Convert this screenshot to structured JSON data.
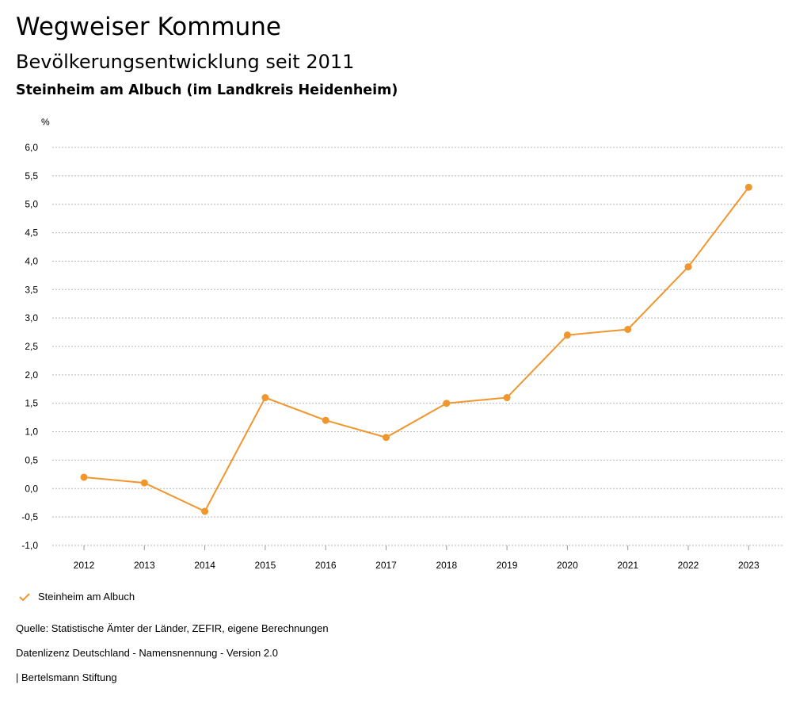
{
  "header": {
    "title": "Wegweiser Kommune",
    "subtitle": "Bevölkerungsentwicklung seit 2011",
    "region": "Steinheim am Albuch (im Landkreis Heidenheim)"
  },
  "chart_data": {
    "type": "line",
    "ylabel": "%",
    "ylim": [
      -1.0,
      6.0
    ],
    "yticks": [
      "6,0",
      "5,5",
      "5,0",
      "4,5",
      "4,0",
      "3,5",
      "3,0",
      "2,5",
      "2,0",
      "1,5",
      "1,0",
      "0,5",
      "0,0",
      "-0,5",
      "-1,0"
    ],
    "ytick_values": [
      6.0,
      5.5,
      5.0,
      4.5,
      4.0,
      3.5,
      3.0,
      2.5,
      2.0,
      1.5,
      1.0,
      0.5,
      0.0,
      -0.5,
      -1.0
    ],
    "categories": [
      "2012",
      "2013",
      "2014",
      "2015",
      "2016",
      "2017",
      "2018",
      "2019",
      "2020",
      "2021",
      "2022",
      "2023"
    ],
    "series": [
      {
        "name": "Steinheim am Albuch",
        "color": "#f0962d",
        "values": [
          0.2,
          0.1,
          -0.4,
          1.6,
          1.2,
          0.9,
          1.5,
          1.6,
          2.7,
          2.8,
          3.9,
          5.3
        ]
      }
    ],
    "grid": true,
    "legend": "bottom-left"
  },
  "legend": {
    "label": "Steinheim am Albuch"
  },
  "footer": {
    "source": "Quelle: Statistische Ämter der Länder, ZEFIR, eigene Berechnungen",
    "license": "Datenlizenz Deutschland - Namensnennung - Version 2.0",
    "publisher": "| Bertelsmann Stiftung"
  }
}
